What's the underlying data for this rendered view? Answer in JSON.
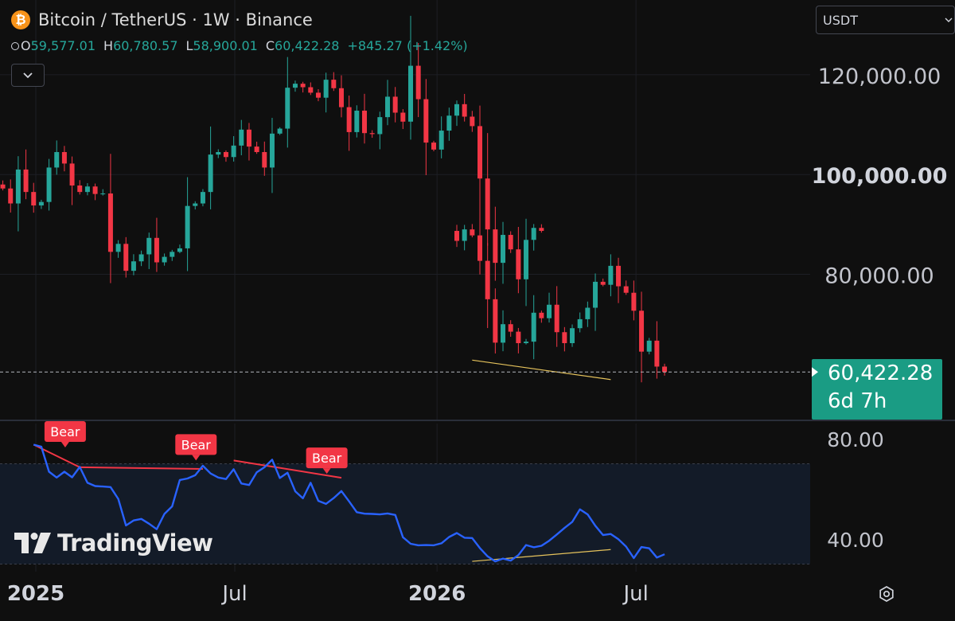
{
  "header": {
    "coin_symbol": "₿",
    "title": "Bitcoin / TetherUS · 1W · Binance",
    "ohlc": {
      "o_label": "O",
      "o_value": "59,577.01",
      "h_label": "H",
      "h_value": "60,780.57",
      "l_label": "L",
      "l_value": "58,900.01",
      "c_label": "C",
      "c_value": "60,422.28",
      "change": "+845.27 (+1.42%)"
    }
  },
  "currency_selector": {
    "value": "USDT"
  },
  "brand": {
    "logo_text": "TradingView"
  },
  "colors": {
    "up": "#26a69a",
    "down": "#f23645",
    "rsi": "#2962ff",
    "divergence_bull": "#e6c35c",
    "accent_price": "#1a9c84"
  },
  "chart_data": [
    {
      "type": "candlestick",
      "title": "",
      "x_tick_labels": [
        "2025",
        "Jul",
        "2026",
        "Jul"
      ],
      "x_tick_dates": [
        "2025-01-01",
        "2025-07-01",
        "2026-01-01",
        "2026-07-01"
      ],
      "y_tick_labels": [
        "120,000.00",
        "100,000.00",
        "80,000.00"
      ],
      "y_ticks": [
        120000,
        100000,
        80000
      ],
      "ylim": [
        52000,
        127000
      ],
      "current_price": {
        "value": 60422.28,
        "label": "60,422.28",
        "countdown": "6d 7h"
      },
      "grid": true,
      "bullish_divergence_line": {
        "from": {
          "date": "2026-02-02",
          "value": 62800
        },
        "to": {
          "date": "2026-06-08",
          "value": 58900
        }
      },
      "weekly_closes": [
        {
          "start": "2024-11-04",
          "values": [
            80000,
            90500,
            91500,
            98000,
            97200,
            94200,
            101000,
            96500,
            93800
          ]
        },
        {
          "start": "2025-01-06",
          "values": [
            94500,
            101400,
            104500,
            102200,
            97800,
            96500,
            97600,
            96100,
            96200,
            84500,
            86100,
            80700,
            82600,
            84000,
            87300,
            82400,
            83500,
            84500,
            85200,
            93700,
            94200,
            96500,
            104000,
            104500,
            103500,
            105800,
            109000,
            105600,
            104500,
            101400
          ]
        },
        {
          "start": "2025-08-04",
          "values": [
            108200,
            109200,
            117400,
            118200,
            117500,
            116400,
            115400,
            119000,
            117300,
            113500,
            108500,
            112800,
            108300,
            108100,
            111500,
            115600,
            112400,
            110600,
            121800,
            115100,
            106400,
            105000,
            108800,
            111800,
            114100,
            111600,
            109700,
            99200,
            89000,
            82300,
            87900,
            85000,
            79000,
            86900,
            89300,
            88700
          ]
        },
        {
          "start": "2026-01-19",
          "values": [
            86700,
            89000,
            87800,
            82700,
            75000,
            66300,
            70000,
            68500,
            66200,
            66500,
            72300,
            71200,
            73900,
            68400,
            66200,
            69200,
            71000,
            73300,
            78500,
            77900,
            81700,
            77600,
            76300,
            72700,
            64500,
            66700,
            61500,
            60422
          ]
        }
      ]
    },
    {
      "type": "line",
      "title": "",
      "y_tick_labels": [
        "80.00",
        "40.00"
      ],
      "y_ticks": [
        80,
        40
      ],
      "ylim": [
        27,
        86
      ],
      "band": [
        30,
        70
      ],
      "series": [
        {
          "start": "2024-12-30",
          "values": [
            77.6,
            76.8,
            66.8,
            64.5,
            66.8,
            64.6,
            68.7,
            62.4,
            61.1,
            60.9,
            60.7,
            56.0,
            45.4,
            47.4,
            48.0,
            46.1,
            43.9,
            50.0,
            53.0,
            63.5,
            64.1,
            65.4,
            69.2,
            66.1,
            64.5,
            63.9,
            67.8,
            62.1,
            61.5,
            66.6,
            68.6,
            71.6,
            64.3,
            66.4,
            59.0,
            56.2,
            62.4,
            55.2,
            54.0,
            56.3,
            59.1,
            55.0,
            50.7,
            50.1,
            50.0,
            49.8,
            50.2,
            49.6,
            40.7,
            38.1,
            37.5,
            37.6,
            37.5,
            38.3,
            40.8,
            42.4,
            40.5,
            40.4,
            36.4,
            33.1,
            31.1,
            32.2,
            31.4,
            33.6,
            37.6,
            36.7,
            37.3,
            39.3,
            41.8,
            44.4,
            46.8,
            51.8,
            49.8,
            45.3,
            41.6,
            42.0,
            39.9,
            37.0,
            32.4,
            36.8,
            36.3,
            32.6,
            33.9
          ]
        }
      ],
      "divergence_labels": [
        {
          "text": "Bear",
          "date": "2025-01-27",
          "value": 76.8
        },
        {
          "text": "Bear",
          "date": "2025-05-26",
          "value": 71.6
        },
        {
          "text": "Bear",
          "date": "2025-09-22",
          "value": 66.3
        }
      ],
      "bearish_divergence_lines": [
        {
          "from": {
            "date": "2024-12-30",
            "value": 77.6
          },
          "to": {
            "date": "2025-02-10",
            "value": 68.6
          }
        },
        {
          "from": {
            "date": "2025-02-10",
            "value": 68.6
          },
          "to": {
            "date": "2025-06-02",
            "value": 67.9
          }
        },
        {
          "from": {
            "date": "2025-06-30",
            "value": 71.3
          },
          "to": {
            "date": "2025-10-06",
            "value": 64.4
          }
        }
      ],
      "bullish_divergence_line": {
        "from": {
          "date": "2026-02-02",
          "value": 31.1
        },
        "to": {
          "date": "2026-06-08",
          "value": 35.8
        }
      }
    }
  ]
}
